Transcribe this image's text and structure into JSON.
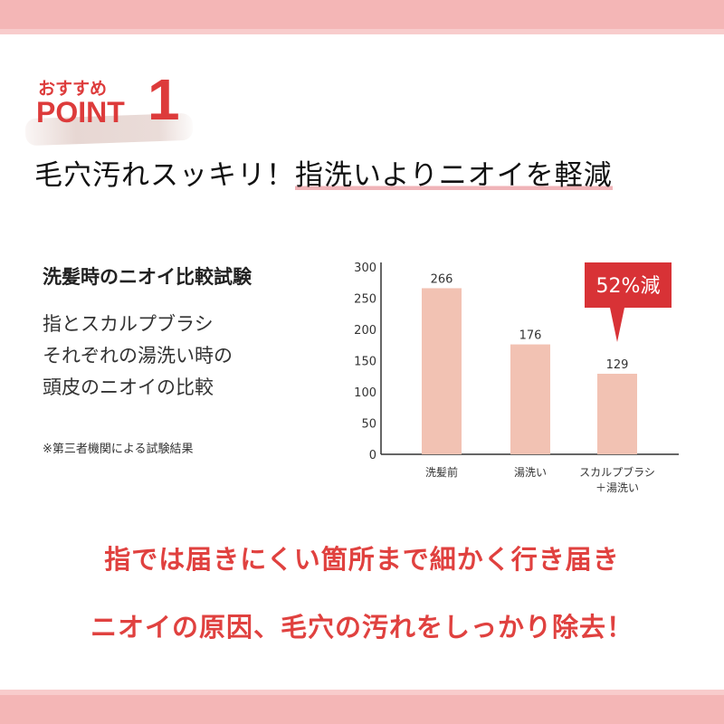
{
  "header": {
    "recommend": "おすすめ",
    "point": "POINT",
    "number": "1"
  },
  "headline": {
    "part1": "毛穴汚れスッキリ！",
    "part2": "指洗いよりニオイを軽減"
  },
  "test": {
    "title": "洗髪時のニオイ比較試験",
    "description": [
      "指とスカルプブラシ",
      "それぞれの湯洗い時の",
      "頭皮のニオイの比較"
    ],
    "note": "※第三者機関による試験結果"
  },
  "chart_data": {
    "type": "bar",
    "categories": [
      "洗髪前",
      "湯洗い",
      "スカルプブラシ\n＋湯洗い"
    ],
    "category_lines": [
      [
        "洗髪前"
      ],
      [
        "湯洗い"
      ],
      [
        "スカルプブラシ",
        "＋湯洗い"
      ]
    ],
    "values": [
      266,
      176,
      129
    ],
    "data_labels": [
      "266",
      "176",
      "129"
    ],
    "ylim": [
      0,
      300
    ],
    "yticks": [
      "0",
      "50",
      "100",
      "150",
      "200",
      "250",
      "300"
    ],
    "grid": false,
    "annotation": {
      "text": "52%減",
      "value": "52",
      "unit": "%減",
      "target": 2
    },
    "bar_color": "#f2c2b3",
    "annotation_color": "#d83236"
  },
  "footer": {
    "line1": "指では届きにくい箇所まで細かく行き届き",
    "line2": "ニオイの原因、毛穴の汚れをしっかり除去！"
  },
  "colors": {
    "accent": "#dd3b3b",
    "band": "#f4b6b6"
  }
}
